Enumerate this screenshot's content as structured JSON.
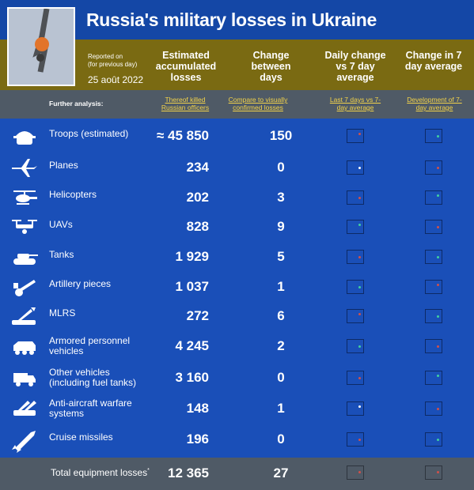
{
  "header": {
    "title": "Russia's military losses in Ukraine",
    "reported_on": "Reported on",
    "reported_note": "(for previous day)",
    "date": "25 août 2022",
    "col_estimated": "Estimated accumulated losses",
    "col_change": "Change between days",
    "col_daily": "Daily change vs 7 day average",
    "col_change7": "Change in 7 day average"
  },
  "analysis": {
    "label": "Further analysis:",
    "killed_link": "Thereof killed Russian officers",
    "compare_link": "Compare to visually confirmed losses",
    "last7_link": "Last 7 days vs 7-day average",
    "dev_link": "Development of 7-day average"
  },
  "rows": [
    {
      "label": "Troops (estimated)",
      "value": "≈ 45 850",
      "change": "150",
      "icon": "soldier-helmet-icon"
    },
    {
      "label": "Planes",
      "value": "234",
      "change": "0",
      "icon": "plane-icon"
    },
    {
      "label": "Helicopters",
      "value": "202",
      "change": "3",
      "icon": "helicopter-icon"
    },
    {
      "label": "UAVs",
      "value": "828",
      "change": "9",
      "icon": "drone-icon"
    },
    {
      "label": "Tanks",
      "value": "1 929",
      "change": "5",
      "icon": "tank-icon"
    },
    {
      "label": "Artillery pieces",
      "value": "1 037",
      "change": "1",
      "icon": "artillery-icon"
    },
    {
      "label": "MLRS",
      "value": "272",
      "change": "6",
      "icon": "rocket-launcher-icon"
    },
    {
      "label": "Armored personnel vehicles",
      "value": "4 245",
      "change": "2",
      "icon": "apc-icon"
    },
    {
      "label": "Other vehicles (including fuel tanks)",
      "value": "3 160",
      "change": "0",
      "icon": "truck-icon"
    },
    {
      "label": "Anti-aircraft warfare systems",
      "value": "148",
      "change": "1",
      "icon": "anti-aircraft-icon"
    },
    {
      "label": "Cruise missiles",
      "value": "196",
      "change": "0",
      "icon": "missile-icon"
    }
  ],
  "total": {
    "label": "Total equipment losses",
    "marker": "*",
    "value": "12 365",
    "change": "27"
  },
  "colors": {
    "blue": "#1a4fb8",
    "gold": "#7a6a12",
    "gray": "#4f5a66",
    "link": "#f2d24a"
  }
}
